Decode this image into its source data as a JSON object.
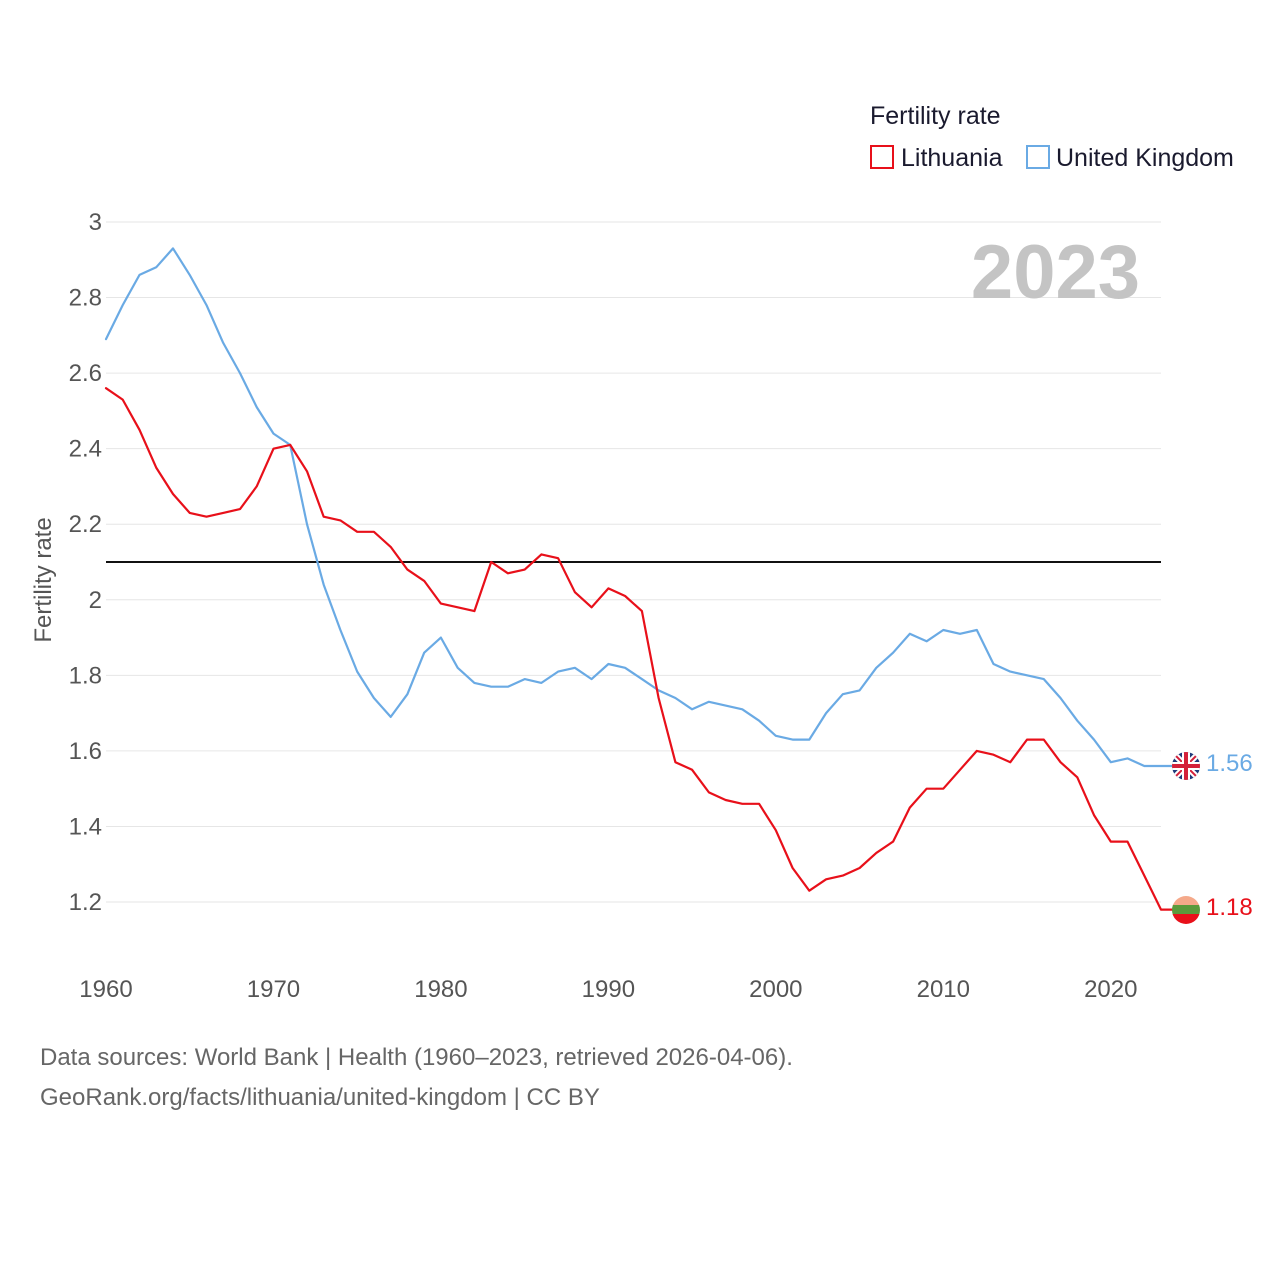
{
  "colors": {
    "lithuania": "#e8101a",
    "united_kingdom": "#6aaae4",
    "grid": "#e6e6e6",
    "reference": "#111111",
    "axis_text": "#555555"
  },
  "chart_data": {
    "type": "line",
    "title": "",
    "xlabel": "",
    "ylabel": "Fertility rate",
    "xlim": [
      1960,
      2023
    ],
    "ylim": [
      1.1,
      3.0
    ],
    "x_ticks": [
      1960,
      1970,
      1980,
      1990,
      2000,
      2010,
      2020
    ],
    "y_ticks": [
      1.2,
      1.4,
      1.6,
      1.8,
      2,
      2.2,
      2.4,
      2.6,
      2.8,
      3
    ],
    "grid": true,
    "legend": {
      "title": "Fertility rate",
      "placement": "top-right",
      "entries": [
        "Lithuania",
        "United Kingdom"
      ]
    },
    "year_label": "2023",
    "reference_line": {
      "y": 2.1,
      "label": ""
    },
    "x": [
      1960,
      1961,
      1962,
      1963,
      1964,
      1965,
      1966,
      1967,
      1968,
      1969,
      1970,
      1971,
      1972,
      1973,
      1974,
      1975,
      1976,
      1977,
      1978,
      1979,
      1980,
      1981,
      1982,
      1983,
      1984,
      1985,
      1986,
      1987,
      1988,
      1989,
      1990,
      1991,
      1992,
      1993,
      1994,
      1995,
      1996,
      1997,
      1998,
      1999,
      2000,
      2001,
      2002,
      2003,
      2004,
      2005,
      2006,
      2007,
      2008,
      2009,
      2010,
      2011,
      2012,
      2013,
      2014,
      2015,
      2016,
      2017,
      2018,
      2019,
      2020,
      2021,
      2022,
      2023
    ],
    "series": [
      {
        "name": "Lithuania",
        "end_label": "1.18",
        "values": [
          2.56,
          2.53,
          2.45,
          2.35,
          2.28,
          2.23,
          2.22,
          2.23,
          2.24,
          2.3,
          2.4,
          2.41,
          2.34,
          2.22,
          2.21,
          2.18,
          2.18,
          2.14,
          2.08,
          2.05,
          1.99,
          1.98,
          1.97,
          2.1,
          2.07,
          2.08,
          2.12,
          2.11,
          2.02,
          1.98,
          2.03,
          2.01,
          1.97,
          1.74,
          1.57,
          1.55,
          1.49,
          1.47,
          1.46,
          1.46,
          1.39,
          1.29,
          1.23,
          1.26,
          1.27,
          1.29,
          1.33,
          1.36,
          1.45,
          1.5,
          1.5,
          1.55,
          1.6,
          1.59,
          1.57,
          1.63,
          1.63,
          1.57,
          1.53,
          1.43,
          1.36,
          1.36,
          1.27,
          1.18
        ]
      },
      {
        "name": "United Kingdom",
        "end_label": "1.56",
        "values": [
          2.69,
          2.78,
          2.86,
          2.88,
          2.93,
          2.86,
          2.78,
          2.68,
          2.6,
          2.51,
          2.44,
          2.41,
          2.2,
          2.04,
          1.92,
          1.81,
          1.74,
          1.69,
          1.75,
          1.86,
          1.9,
          1.82,
          1.78,
          1.77,
          1.77,
          1.79,
          1.78,
          1.81,
          1.82,
          1.79,
          1.83,
          1.82,
          1.79,
          1.76,
          1.74,
          1.71,
          1.73,
          1.72,
          1.71,
          1.68,
          1.64,
          1.63,
          1.63,
          1.7,
          1.75,
          1.76,
          1.82,
          1.86,
          1.91,
          1.89,
          1.92,
          1.91,
          1.92,
          1.83,
          1.81,
          1.8,
          1.79,
          1.74,
          1.68,
          1.63,
          1.57,
          1.58,
          1.56,
          1.56
        ]
      }
    ]
  },
  "footer": {
    "line1": "Data sources: World Bank | Health (1960–2023, retrieved 2026-04-06).",
    "line2": "GeoRank.org/facts/lithuania/united-kingdom | CC BY"
  }
}
